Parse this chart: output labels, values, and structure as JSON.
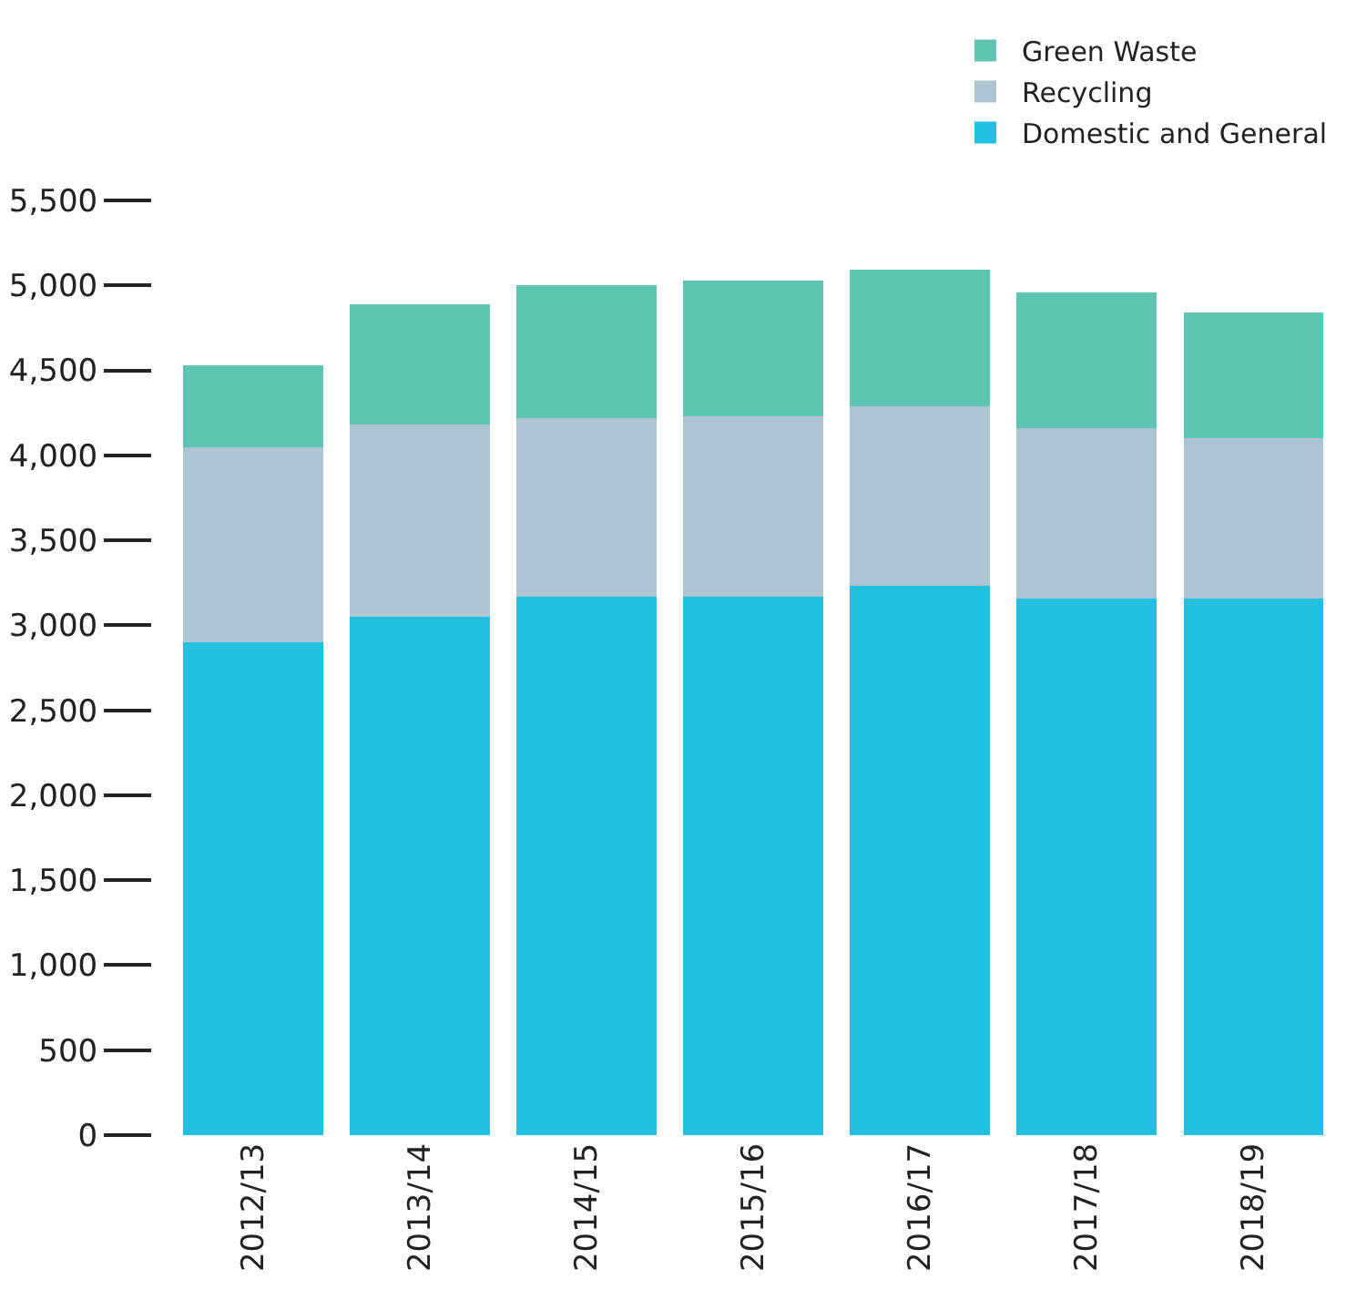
{
  "chart_data": {
    "type": "bar",
    "stacked": true,
    "categories": [
      "2012/13",
      "2013/14",
      "2014/15",
      "2015/16",
      "2016/17",
      "2017/18",
      "2018/19"
    ],
    "series": [
      {
        "name": "Domestic and General",
        "color": "#22c0e0",
        "values": [
          2900,
          3050,
          3170,
          3170,
          3230,
          3160,
          3160
        ]
      },
      {
        "name": "Recycling",
        "color": "#adc5d3",
        "values": [
          1150,
          1130,
          1050,
          1060,
          1060,
          1000,
          940
        ]
      },
      {
        "name": "Green Waste",
        "color": "#5fc4b1",
        "values": [
          480,
          710,
          780,
          800,
          800,
          800,
          740
        ]
      }
    ],
    "ylim": [
      0,
      5500
    ],
    "yticks": [
      0,
      500,
      {
        "value": 1000,
        "label": "1,000"
      },
      {
        "value": 1500,
        "label": "1,500"
      },
      {
        "value": 2000,
        "label": "2,000"
      },
      {
        "value": 2500,
        "label": "2,500"
      },
      {
        "value": 3000,
        "label": "3,000"
      },
      {
        "value": 3500,
        "label": "3,500"
      },
      {
        "value": 4000,
        "label": "4,000"
      },
      {
        "value": 4500,
        "label": "4,500"
      },
      {
        "value": 5000,
        "label": "5,000"
      },
      {
        "value": 5500,
        "label": "5,500"
      }
    ],
    "grid": false,
    "legend": "top right"
  }
}
